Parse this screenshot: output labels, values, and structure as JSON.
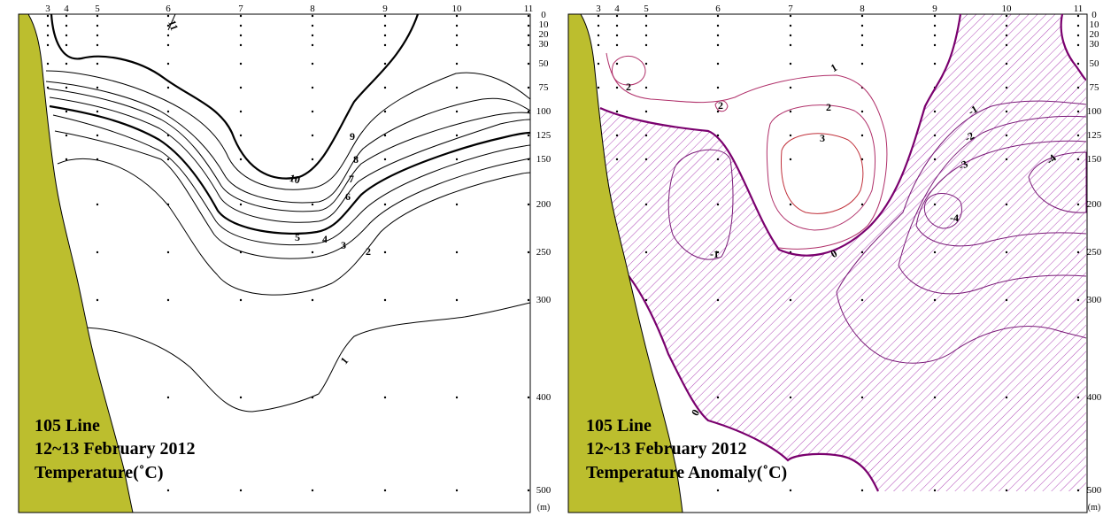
{
  "chart_data": [
    {
      "type": "contour",
      "panel": "left",
      "caption": [
        "105 Line",
        "12~13 February 2012",
        "Temperature(˚C)"
      ],
      "stations": [
        "3",
        "4",
        "5",
        "6",
        "7",
        "8",
        "9",
        "10",
        "11"
      ],
      "depth_ticks": [
        "0",
        "10",
        "20",
        "30",
        "50",
        "75",
        "100",
        "125",
        "150",
        "200",
        "250",
        "300",
        "400",
        "500"
      ],
      "depth_unit": "(m)",
      "ylim": [
        0,
        520
      ],
      "contour_labels": [
        "11",
        "10",
        "9",
        "8",
        "7",
        "6",
        "5",
        "4",
        "3",
        "2",
        "1"
      ],
      "colors": {
        "land": "#bcbe2e",
        "lines": "#000000"
      }
    },
    {
      "type": "contour",
      "panel": "right",
      "caption": [
        "105 Line",
        "12~13 February 2012",
        "Temperature Anomaly(˚C)"
      ],
      "stations": [
        "3",
        "4",
        "5",
        "6",
        "7",
        "8",
        "9",
        "10",
        "11"
      ],
      "depth_ticks": [
        "0",
        "10",
        "20",
        "30",
        "50",
        "75",
        "100",
        "125",
        "150",
        "200",
        "250",
        "300",
        "400",
        "500"
      ],
      "depth_unit": "(m)",
      "ylim": [
        0,
        520
      ],
      "contour_labels": [
        "1",
        "2",
        "2",
        "2",
        "3",
        "0",
        "0",
        "-1",
        "-1",
        "-2",
        "-3",
        "-4",
        "-4"
      ],
      "negative_region": "hatched",
      "colors": {
        "land": "#bcbe2e",
        "positive": "#b0306a",
        "negative": "#7a1a78",
        "zero": "#7a006e",
        "hatch": "#b04ab8"
      }
    }
  ]
}
